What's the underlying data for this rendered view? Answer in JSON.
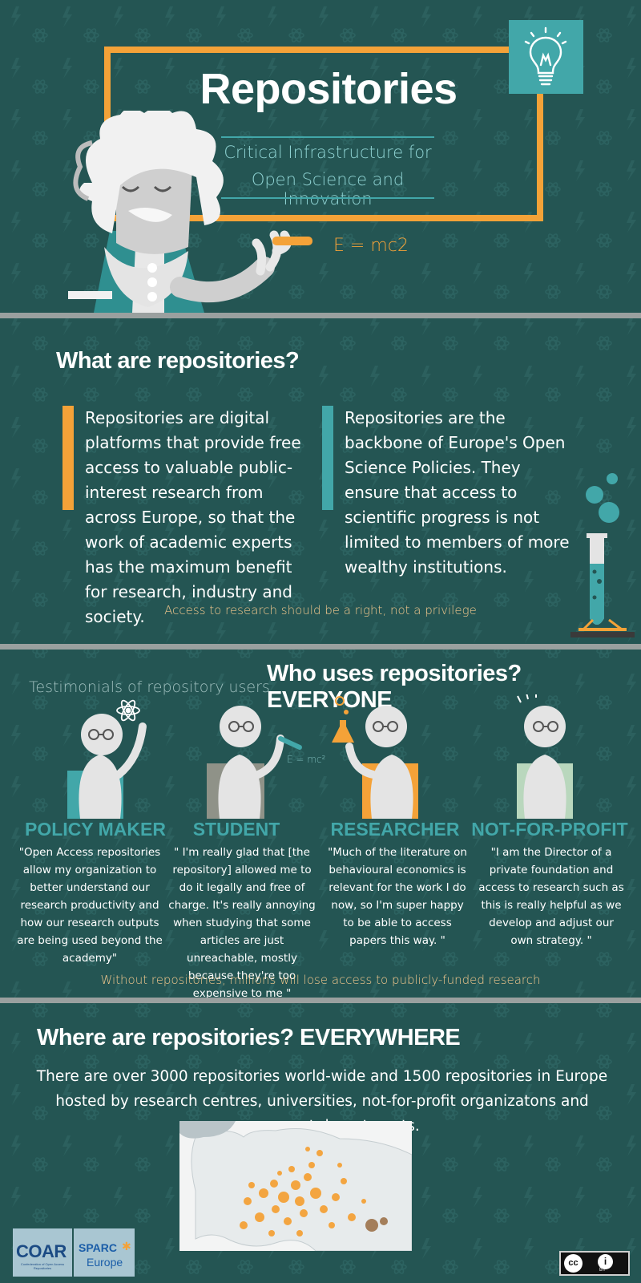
{
  "hero": {
    "title": "Repositories",
    "subtitle_line1": "Critical Infrastructure for",
    "subtitle_line2": "Open Science and Innovation",
    "formula": "E = mc2"
  },
  "what": {
    "heading": "What are repositories?",
    "para_left": "Repositories are digital platforms that provide free access to valuable public-interest research from across Europe, so that the work of academic experts has the maximum benefit for research, industry and society.",
    "para_right": "Repositories are the backbone of Europe's Open Science Policies. They ensure that access to scientific progress is not limited to members of more wealthy institutions.",
    "tagline": "Access to research should be a right, not a privilege"
  },
  "who": {
    "testimonials_label": "Testimonials of repository users",
    "heading": "Who uses repositories? EVERYONE",
    "formula_small": "E = mc²",
    "roles": [
      {
        "title": "POLICY MAKER",
        "quote": "\"Open Access repositories allow my organization to better understand our research productivity and how our research outputs are being used beyond the academy\""
      },
      {
        "title": "STUDENT",
        "quote": "\" I'm really glad that [the repository] allowed me to do it legally and free of charge. It's really annoying when studying that some articles are just unreachable, mostly because they're too expensive to me \""
      },
      {
        "title": "RESEARCHER",
        "quote": "\"Much of the literature on behavioural economics is relevant for the work I do now, so I'm super happy to be able to access papers this way. \""
      },
      {
        "title": "NOT-FOR-PROFIT",
        "quote": "\"I am the Director of a private foundation and access to research such as this is really helpful as we develop and adjust our own strategy. \""
      }
    ],
    "tagline": "Without repositories, millions will lose access to publicly-funded research"
  },
  "where": {
    "heading": "Where are repositories? EVERYWHERE",
    "body": "There are over 3000 repositories world-wide and 1500 repositories in Europe hosted by research centres, universities, not-for-profit organizatons  and government departments."
  },
  "logos": {
    "coar": "COAR",
    "coar_sub": "Confederation of Open Access Repositories",
    "sparc_line1": "SPARC",
    "sparc_line2": "Europe",
    "cc_label": "cc",
    "by_label": "BY"
  },
  "colors": {
    "background": "#245553",
    "orange": "#f4a238",
    "teal": "#42a7a9",
    "divider": "#9aa09f"
  }
}
